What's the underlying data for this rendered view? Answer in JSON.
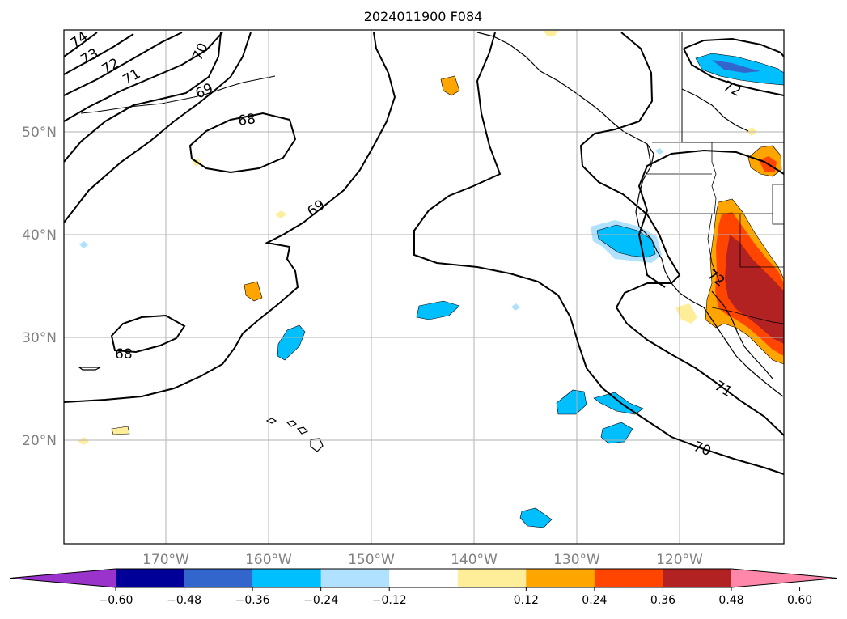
{
  "title": "2024011900 F084",
  "lat_labels": [
    "50°N",
    "40°N",
    "30°N",
    "20°N"
  ],
  "lon_labels": [
    "170°W",
    "160°W",
    "150°W",
    "140°W",
    "130°W",
    "120°W"
  ],
  "contour_labels": [
    "74",
    "73",
    "72",
    "71",
    "70",
    "69",
    "68",
    "69",
    "68",
    "72",
    "72",
    "71",
    "70"
  ],
  "colorbar": {
    "ticks": [
      "−0.60",
      "−0.48",
      "−0.36",
      "−0.24",
      "−0.12",
      "0.12",
      "0.24",
      "0.36",
      "0.48",
      "0.60"
    ],
    "bins": [
      {
        "color": "#9933cc",
        "type": "under"
      },
      {
        "color": "#000099"
      },
      {
        "color": "#3366cc"
      },
      {
        "color": "#00bfff"
      },
      {
        "color": "#b0e2ff"
      },
      {
        "color": "#ffffff"
      },
      {
        "color": "#ffee99"
      },
      {
        "color": "#ffa500"
      },
      {
        "color": "#ff4500"
      },
      {
        "color": "#b22222"
      },
      {
        "color": "#ff88aa",
        "type": "over"
      }
    ]
  }
}
